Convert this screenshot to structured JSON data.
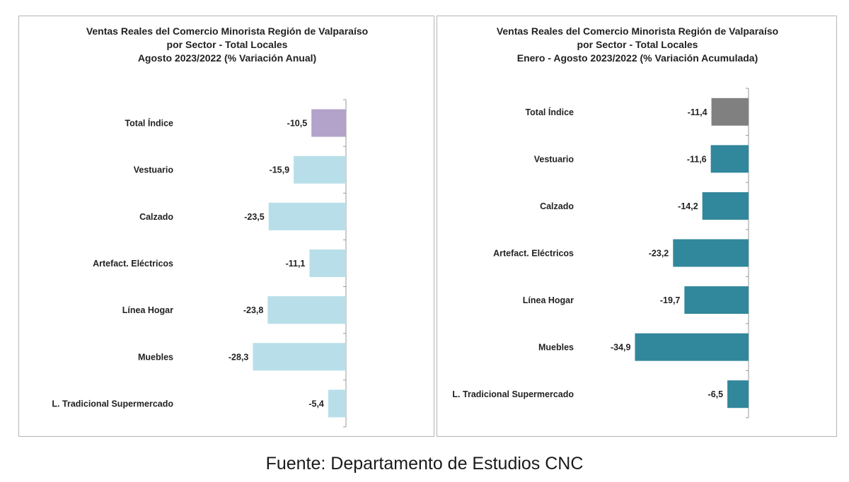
{
  "chart_data": [
    {
      "type": "bar",
      "orientation": "horizontal",
      "title": [
        "Ventas Reales del Comercio Minorista Región de Valparaíso",
        "por Sector - Total Locales",
        "Agosto 2023/2022 (% Variación Anual)"
      ],
      "categories": [
        "Total Índice",
        "Vestuario",
        "Calzado",
        "Artefact. Eléctricos",
        "Línea Hogar",
        "Muebles",
        "L. Tradicional Supermercado"
      ],
      "values": [
        -10.5,
        -15.9,
        -23.5,
        -11.1,
        -23.8,
        -28.3,
        -5.4
      ],
      "labels": [
        "-10,5",
        "-15,9",
        "-23,5",
        "-11,1",
        "-23,8",
        "-28,3",
        "-5,4"
      ],
      "colors": [
        "#b3a2c9",
        "#b8dfe9",
        "#b8dfe9",
        "#b8dfe9",
        "#b8dfe9",
        "#b8dfe9",
        "#b8dfe9"
      ],
      "xlim": [
        -40,
        0
      ],
      "grid": false,
      "legend": "none"
    },
    {
      "type": "bar",
      "orientation": "horizontal",
      "title": [
        "Ventas Reales del Comercio Minorista Región de Valparaíso",
        "por Sector  - Total Locales",
        "Enero - Agosto 2023/2022 (% Variación Acumulada)"
      ],
      "categories": [
        "Total Índice",
        "Vestuario",
        "Calzado",
        "Artefact. Eléctricos",
        "Línea Hogar",
        "Muebles",
        "L. Tradicional Supermercado"
      ],
      "values": [
        -11.4,
        -11.6,
        -14.2,
        -23.2,
        -19.7,
        -34.9,
        -6.5
      ],
      "labels": [
        "-11,4",
        "-11,6",
        "-14,2",
        "-23,2",
        "-19,7",
        "-34,9",
        "-6,5"
      ],
      "colors": [
        "#808080",
        "#31879b",
        "#31879b",
        "#31879b",
        "#31879b",
        "#31879b",
        "#31879b"
      ],
      "xlim": [
        -40,
        0
      ],
      "grid": false,
      "legend": "none"
    }
  ],
  "source": "Fuente: Departamento de Estudios CNC"
}
